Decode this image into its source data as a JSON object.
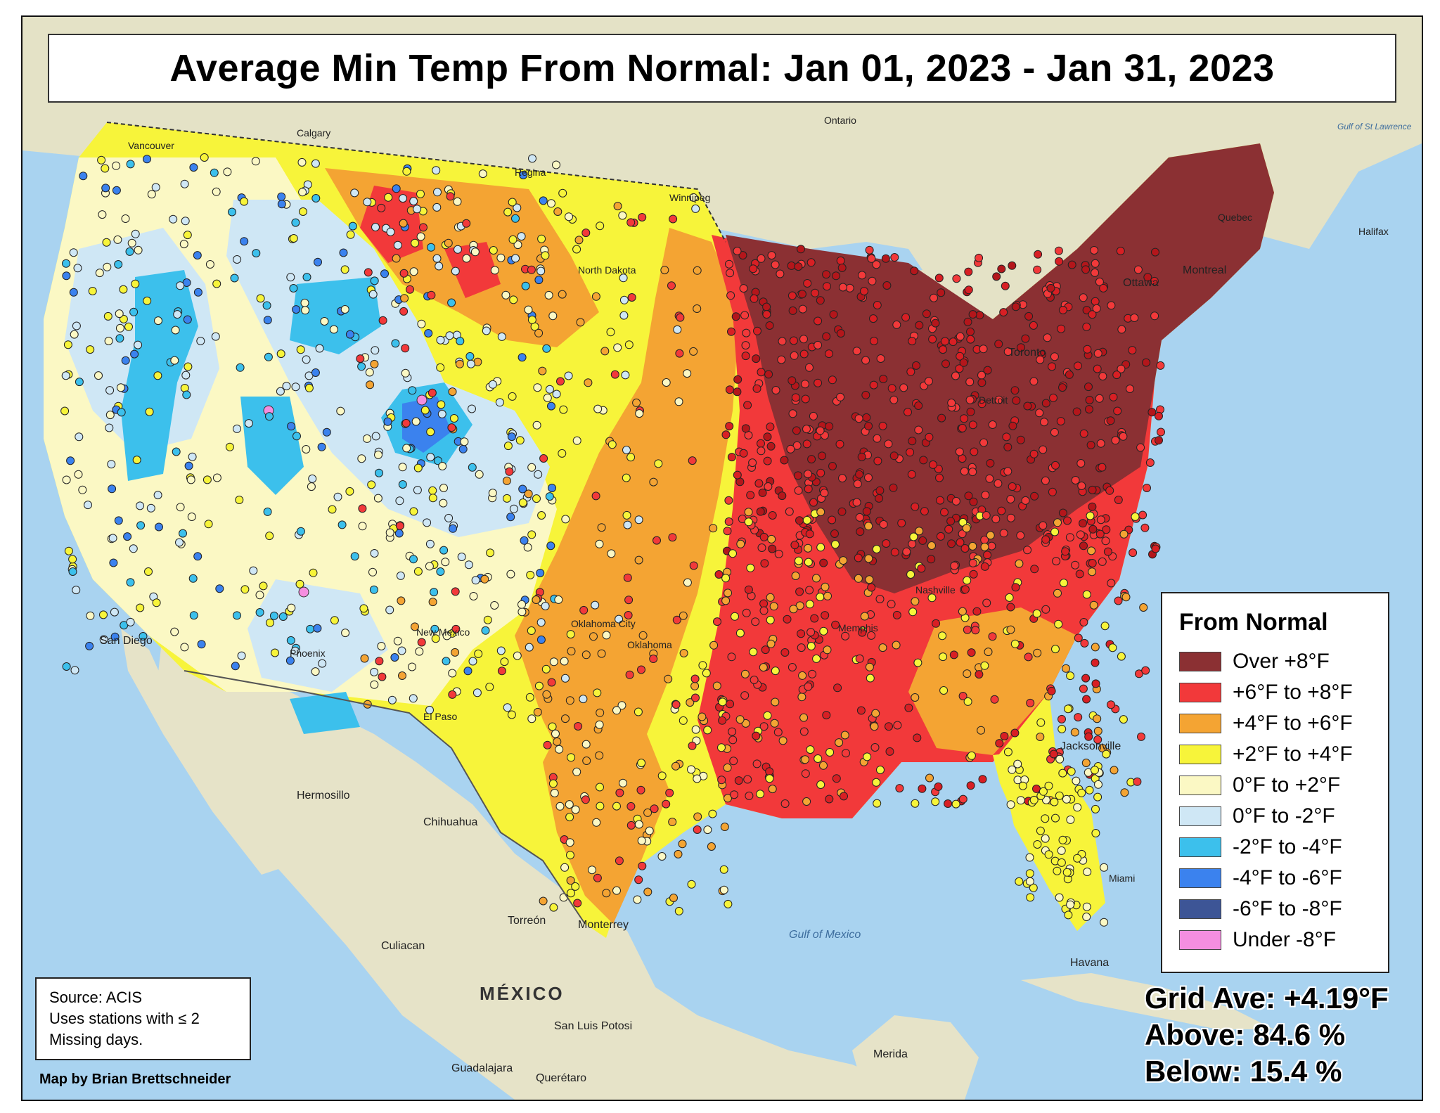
{
  "title": "Average Min Temp From Normal: Jan 01, 2023 - Jan 31, 2023",
  "legend": {
    "title": "From Normal",
    "items": [
      {
        "label": "Over +8°F",
        "color": "#8b3033"
      },
      {
        "label": "+6°F to +8°F",
        "color": "#f2393a"
      },
      {
        "label": "+4°F to +6°F",
        "color": "#f4a433"
      },
      {
        "label": "+2°F to +4°F",
        "color": "#f7f43a"
      },
      {
        "label": "0°F to +2°F",
        "color": "#fbf8c4"
      },
      {
        "label": "0°F to -2°F",
        "color": "#cfe7f5"
      },
      {
        "label": "-2°F to -4°F",
        "color": "#3cc0ec"
      },
      {
        "label": "-4°F to -6°F",
        "color": "#3b82ee"
      },
      {
        "label": "-6°F to -8°F",
        "color": "#3d5596"
      },
      {
        "label": "Under -8°F",
        "color": "#f58ee0"
      }
    ]
  },
  "source": {
    "lines": [
      "Source: ACIS",
      "Uses stations with ≤ 2",
      "Missing days."
    ]
  },
  "credit": "Map by Brian Brettschneider",
  "stats": {
    "grid_ave_label": "Grid Ave:",
    "grid_ave_value": "+4.19°F",
    "above_label": "Above:",
    "above_value": "84.6 %",
    "below_label": "Below:",
    "below_value": "15.4 %"
  },
  "places": {
    "calgary": "Calgary",
    "regina": "Regina",
    "winnipeg": "Winnipeg",
    "vancouver": "Vancouver",
    "ontario": "Ontario",
    "ottawa": "Ottawa",
    "montreal": "Montreal",
    "toronto": "Toronto",
    "quebec": "Quebec",
    "halifax": "Halifax",
    "gulf_st_lawrence": "Gulf of St Lawrence",
    "hermosillo": "Hermosillo",
    "chihuahua": "Chihuahua",
    "torreon": "Torreón",
    "monterrey": "Monterrey",
    "culiacan": "Culiacan",
    "mexico": "MÉXICO",
    "san_luis_potosi": "San Luis Potosi",
    "guadalajara": "Guadalajara",
    "queretaro": "Querétaro",
    "merida": "Merida",
    "havana": "Havana",
    "gulf_of_mexico": "Gulf of Mexico",
    "jacksonville": "Jacksonville",
    "oklahoma_city": "Oklahoma City",
    "oklahoma": "Oklahoma",
    "san_diego": "San Diego",
    "phoenix": "Phoenix",
    "miami": "Miami",
    "north_dakota": "North Dakota",
    "new_mexico": "New Mexico",
    "el_paso": "El Paso",
    "memphis": "Memphis",
    "nashville": "Nashville",
    "detroit": "Detroit"
  }
}
